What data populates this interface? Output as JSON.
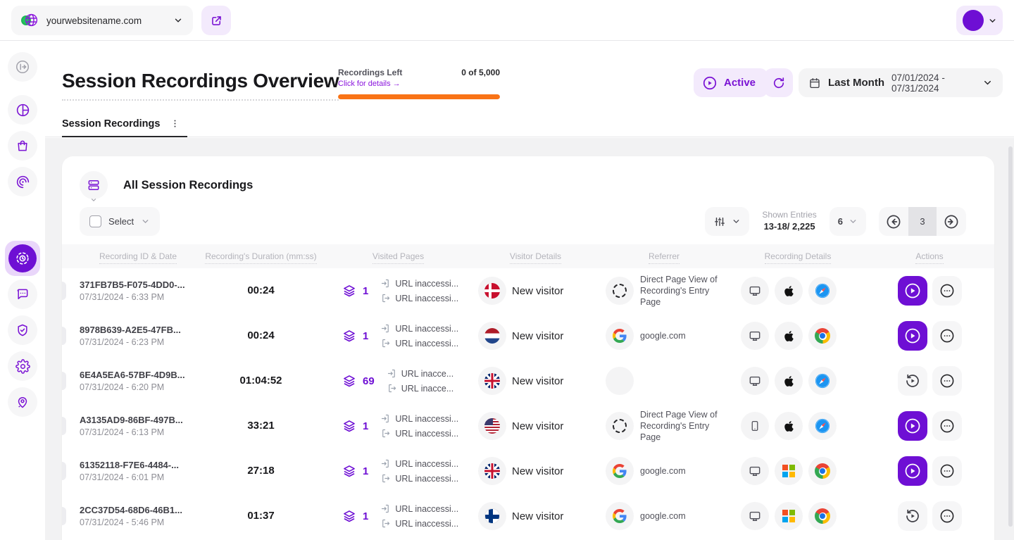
{
  "colors": {
    "accent": "#6E0FD4",
    "accent_light": "#F3EAFC",
    "progress": "#F97316"
  },
  "topbar": {
    "website": "yourwebsitename.com"
  },
  "header": {
    "title": "Session Recordings Overview",
    "recordings": {
      "label": "Recordings Left",
      "link": "Click for details →",
      "count": "0 of 5,000",
      "progress_pct": 100
    },
    "active_label": "Active",
    "date": {
      "preset": "Last Month",
      "range": "07/01/2024 - 07/31/2024"
    }
  },
  "tabs": [
    {
      "label": "Session Recordings",
      "active": true
    }
  ],
  "card": {
    "title": "All Session Recordings",
    "select_label": "Select",
    "entries_label": "Shown Entries",
    "entries_value": "13-18/ 2,225",
    "page_size": "6",
    "page_current": "3"
  },
  "table": {
    "columns": [
      "Recording ID & Date",
      "Recording's Duration (mm:ss)",
      "Visited Pages",
      "Visitor Details",
      "Referrer",
      "Recording Details",
      "Actions"
    ],
    "rows": [
      {
        "id": "371FB7B5-F075-4DD0-...",
        "date": "07/31/2024 - 6:33 PM",
        "duration": "00:24",
        "pages": "1",
        "entry_url": "URL inaccessi...",
        "exit_url": "URL inaccessi...",
        "country": "dk",
        "visitor": "New visitor",
        "referrer_type": "direct",
        "referrer_text": "Direct Page View of Recording's Entry Page",
        "device": "desktop",
        "os": "apple",
        "browser": "safari",
        "primary_action": "play"
      },
      {
        "id": "8978B639-A2E5-47FB...",
        "date": "07/31/2024 - 6:23 PM",
        "duration": "00:24",
        "pages": "1",
        "entry_url": "URL inaccessi...",
        "exit_url": "URL inaccessi...",
        "country": "nl",
        "visitor": "New visitor",
        "referrer_type": "google",
        "referrer_text": "google.com",
        "device": "desktop",
        "os": "apple",
        "browser": "chrome",
        "primary_action": "play"
      },
      {
        "id": "6E4A5EA6-57BF-4D9B...",
        "date": "07/31/2024 - 6:20 PM",
        "duration": "01:04:52",
        "pages": "69",
        "entry_url": "URL inacce...",
        "exit_url": "URL inacce...",
        "country": "gb",
        "visitor": "New visitor",
        "referrer_type": "none",
        "referrer_text": "",
        "device": "desktop",
        "os": "apple",
        "browser": "safari",
        "primary_action": "replay"
      },
      {
        "id": "A3135AD9-86BF-497B...",
        "date": "07/31/2024 - 6:13 PM",
        "duration": "33:21",
        "pages": "1",
        "entry_url": "URL inaccessi...",
        "exit_url": "URL inaccessi...",
        "country": "us",
        "visitor": "New visitor",
        "referrer_type": "direct",
        "referrer_text": "Direct Page View of Recording's Entry Page",
        "device": "mobile",
        "os": "apple",
        "browser": "safari",
        "primary_action": "play"
      },
      {
        "id": "61352118-F7E6-4484-...",
        "date": "07/31/2024 - 6:01 PM",
        "duration": "27:18",
        "pages": "1",
        "entry_url": "URL inaccessi...",
        "exit_url": "URL inaccessi...",
        "country": "gb",
        "visitor": "New visitor",
        "referrer_type": "google",
        "referrer_text": "google.com",
        "device": "desktop",
        "os": "windows",
        "browser": "chrome",
        "primary_action": "play"
      },
      {
        "id": "2CC37D54-68D6-46B1...",
        "date": "07/31/2024 - 5:46 PM",
        "duration": "01:37",
        "pages": "1",
        "entry_url": "URL inaccessi...",
        "exit_url": "URL inaccessi...",
        "country": "fi",
        "visitor": "New visitor",
        "referrer_type": "google",
        "referrer_text": "google.com",
        "device": "desktop",
        "os": "windows",
        "browser": "chrome",
        "primary_action": "replay"
      }
    ]
  }
}
